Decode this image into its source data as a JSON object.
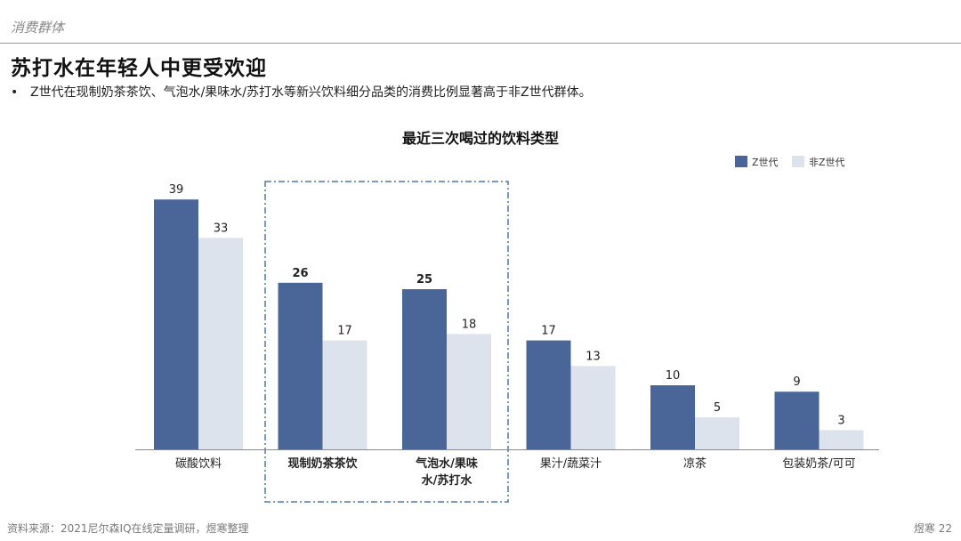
{
  "header": {
    "section_label": "消费群体",
    "title": "苏打水在年轻人中更受欢迎",
    "bullet_marker": "•",
    "bullet": "Z世代在现制奶茶茶饮、气泡水/果味水/苏打水等新兴饮料细分品类的消费比例显著高于非Z世代群体。"
  },
  "chart_data": {
    "type": "bar",
    "title": "最近三次喝过的饮料类型",
    "categories": [
      "碳酸饮料",
      "现制奶茶茶饮",
      "气泡水/果味水/苏打水",
      "果汁/蔬菜汁",
      "凉茶",
      "包装奶茶/可可"
    ],
    "category_lines": [
      [
        "碳酸饮料"
      ],
      [
        "现制奶茶茶饮"
      ],
      [
        "气泡水/果味",
        "水/苏打水"
      ],
      [
        "果汁/蔬菜汁"
      ],
      [
        "凉茶"
      ],
      [
        "包装奶茶/可可"
      ]
    ],
    "highlighted_categories": [
      "现制奶茶茶饮",
      "气泡水/果味水/苏打水"
    ],
    "series": [
      {
        "name": "Z世代",
        "color": "#4a6699",
        "values": [
          39,
          26,
          25,
          17,
          10,
          9
        ]
      },
      {
        "name": "非Z世代",
        "color": "#dde3ec",
        "values": [
          33,
          17,
          18,
          13,
          5,
          3
        ]
      }
    ],
    "ylim": [
      0,
      40
    ],
    "legend_position": "top-right",
    "grid": false,
    "highlight_style": "dash-dot box"
  },
  "footer": {
    "source": "资料来源：2021尼尔森IQ在线定量调研，煜寒整理",
    "page": "煜寒 22"
  }
}
